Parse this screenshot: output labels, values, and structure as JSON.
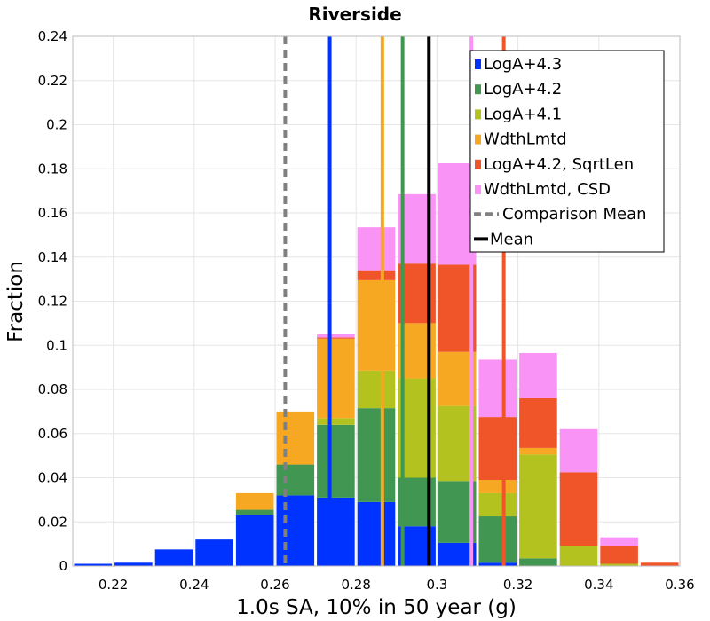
{
  "chart_data": {
    "type": "bar",
    "stacked": true,
    "title": "Riverside",
    "xlabel": "1.0s SA, 10% in 50 year (g)",
    "ylabel": "Fraction",
    "xlim": [
      0.21,
      0.36
    ],
    "ylim": [
      0,
      0.24
    ],
    "x_ticks": [
      "0.22",
      "0.24",
      "0.26",
      "0.28",
      "0.3",
      "0.32",
      "0.34",
      "0.36"
    ],
    "y_ticks": [
      "0",
      "0.02",
      "0.04",
      "0.06",
      "0.08",
      "0.1",
      "0.12",
      "0.14",
      "0.16",
      "0.18",
      "0.2",
      "0.22",
      "0.24"
    ],
    "grid": true,
    "legend_position": "top-right",
    "bin_width": 0.01,
    "bin_centers": [
      0.215,
      0.225,
      0.235,
      0.245,
      0.255,
      0.265,
      0.275,
      0.285,
      0.295,
      0.305,
      0.315,
      0.325,
      0.335,
      0.345,
      0.355
    ],
    "series": [
      {
        "name": "LogA+4.3",
        "color": "#0033ff",
        "values": [
          0.001,
          0.0015,
          0.0075,
          0.012,
          0.023,
          0.032,
          0.031,
          0.029,
          0.018,
          0.0105,
          0.0015,
          0,
          0,
          0,
          0
        ]
      },
      {
        "name": "LogA+4.2",
        "color": "#419652",
        "values": [
          0,
          0,
          0,
          0,
          0.0025,
          0.014,
          0.033,
          0.0425,
          0.022,
          0.028,
          0.021,
          0.0035,
          0,
          0,
          0
        ]
      },
      {
        "name": "LogA+4.1",
        "color": "#b3c21e",
        "values": [
          0,
          0,
          0,
          0,
          0,
          0,
          0.003,
          0.017,
          0.045,
          0.034,
          0.0105,
          0.047,
          0.009,
          0.001,
          0
        ]
      },
      {
        "name": "WdthLmtd",
        "color": "#f7a823",
        "values": [
          0,
          0,
          0,
          0,
          0.0075,
          0.024,
          0.036,
          0.041,
          0.025,
          0.0245,
          0.006,
          0.003,
          0,
          0,
          0
        ]
      },
      {
        "name": "LogA+4.2, SqrtLen",
        "color": "#f0552a",
        "values": [
          0,
          0,
          0,
          0,
          0,
          0,
          0.0005,
          0.0045,
          0.027,
          0.0395,
          0.0285,
          0.0225,
          0.0335,
          0.008,
          0.0015
        ]
      },
      {
        "name": "WdthLmtd, CSD",
        "color": "#f993f5",
        "values": [
          0,
          0,
          0,
          0,
          0,
          0,
          0.0015,
          0.0195,
          0.0315,
          0.046,
          0.026,
          0.0205,
          0.0195,
          0.004,
          0
        ]
      }
    ],
    "vlines": [
      {
        "series": "LogA+4.3",
        "x": 0.2735,
        "style": "solid",
        "color": "#0033ff"
      },
      {
        "series": "WdthLmtd",
        "x": 0.2865,
        "style": "solid",
        "color": "#f7a823"
      },
      {
        "series": "LogA+4.2",
        "x": 0.2915,
        "style": "solid",
        "color": "#419652"
      },
      {
        "series": "WdthLmtd, CSD",
        "x": 0.3085,
        "style": "solid",
        "color": "#f993f5"
      },
      {
        "series": "LogA+4.2, SqrtLen",
        "x": 0.3165,
        "style": "solid",
        "color": "#f0552a"
      },
      {
        "series": "Comparison Mean",
        "x": 0.2625,
        "style": "dashed",
        "color": "#808080"
      },
      {
        "series": "Mean",
        "x": 0.298,
        "style": "solid",
        "color": "#000000"
      }
    ],
    "legend": [
      {
        "label": "LogA+4.3",
        "kind": "box",
        "color": "#0033ff"
      },
      {
        "label": "LogA+4.2",
        "kind": "box",
        "color": "#419652"
      },
      {
        "label": "LogA+4.1",
        "kind": "box",
        "color": "#b3c21e"
      },
      {
        "label": "WdthLmtd",
        "kind": "box",
        "color": "#f7a823"
      },
      {
        "label": "LogA+4.2, SqrtLen",
        "kind": "box",
        "color": "#f0552a"
      },
      {
        "label": "WdthLmtd, CSD",
        "kind": "box",
        "color": "#f993f5"
      },
      {
        "label": "Comparison Mean",
        "kind": "dashed",
        "color": "#808080"
      },
      {
        "label": "Mean",
        "kind": "line",
        "color": "#000000"
      }
    ]
  }
}
